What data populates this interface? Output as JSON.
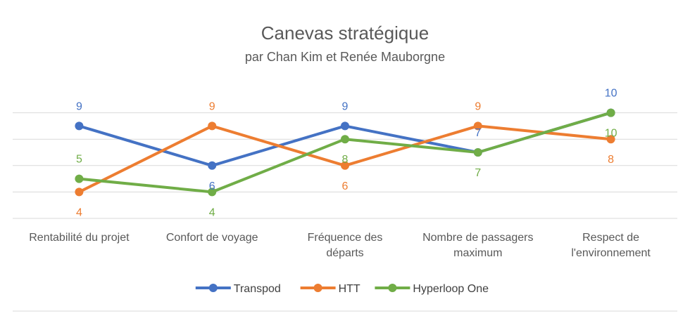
{
  "chart_data": {
    "type": "line",
    "title": "Canevas stratégique",
    "subtitle": "par Chan Kim et Renée Mauborgne",
    "categories": [
      [
        "Rentabilité du projet"
      ],
      [
        "Confort de voyage"
      ],
      [
        "Fréquence des",
        "départs"
      ],
      [
        "Nombre de passagers",
        "maximum"
      ],
      [
        "Respect de",
        "l'environnement"
      ]
    ],
    "series": [
      {
        "name": "Transpod",
        "color": "#4472C4",
        "values": [
          9,
          6,
          9,
          7,
          10
        ]
      },
      {
        "name": "HTT",
        "color": "#ED7D31",
        "values": [
          4,
          9,
          6,
          9,
          8
        ]
      },
      {
        "name": "Hyperloop One",
        "color": "#70AD47",
        "values": [
          5,
          4,
          8,
          7,
          10
        ]
      }
    ],
    "ylim": [
      0,
      10
    ],
    "grid": true,
    "legend": "bottom"
  }
}
